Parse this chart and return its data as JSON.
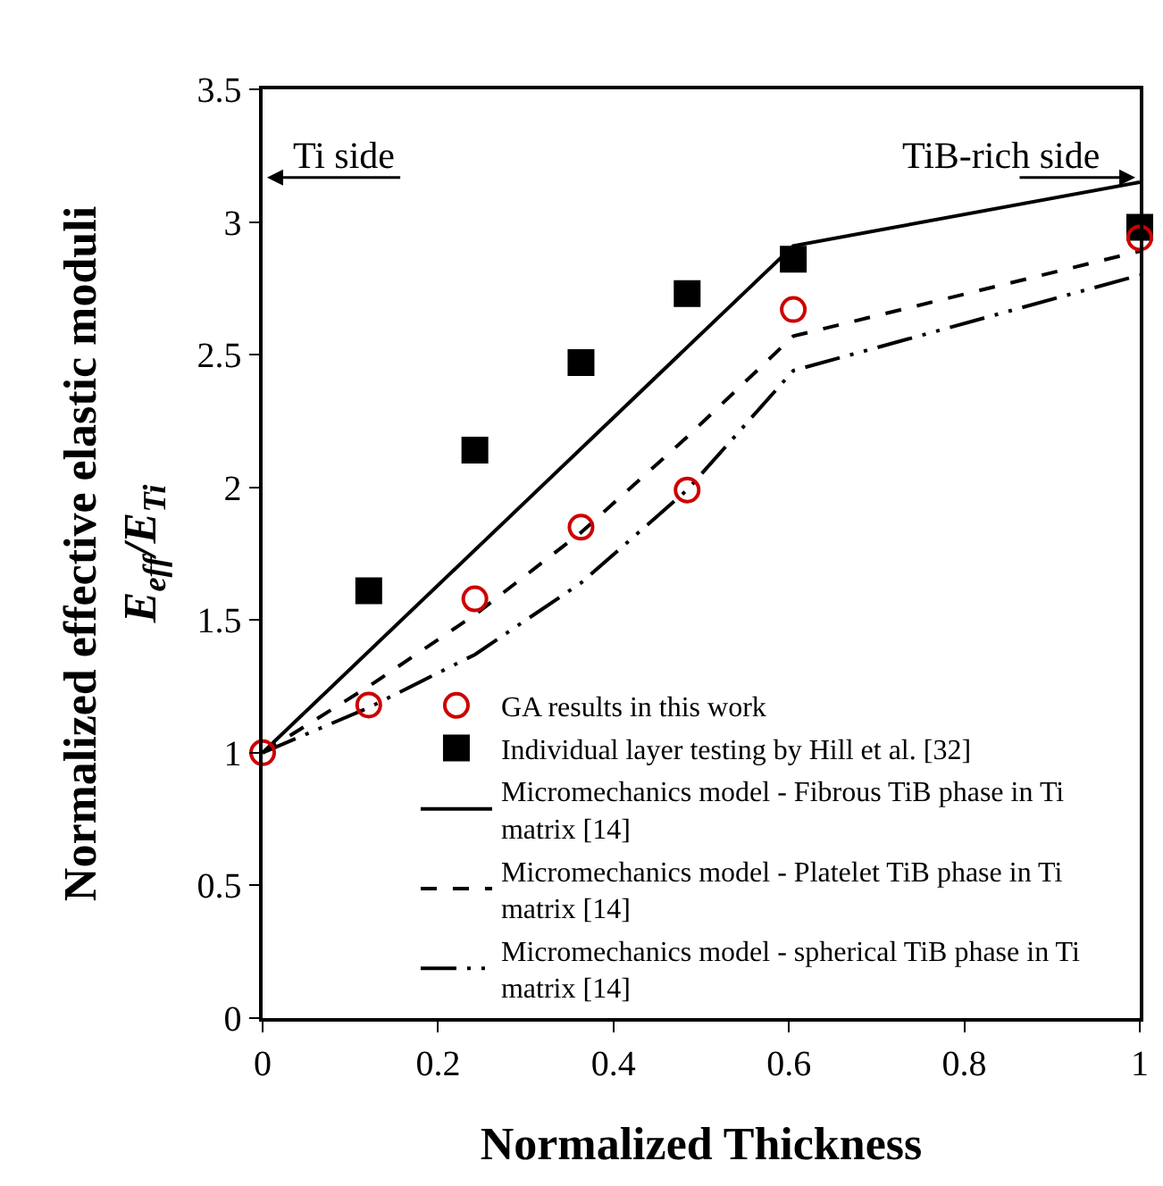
{
  "chart_data": {
    "type": "scatter",
    "xlabel": "Normalized Thickness",
    "ylabel": "Normalized effective elastic moduli\nE$_{eff}$/E$_{Ti}$",
    "xlim": [
      0,
      1
    ],
    "xticks": [
      0,
      0.2,
      0.4,
      0.6,
      0.8,
      1
    ],
    "ylim": [
      0,
      3.5
    ],
    "yticks": [
      0,
      0.5,
      1,
      1.5,
      2,
      2.5,
      3,
      3.5
    ],
    "legend": "bottom right",
    "annotations": [
      "Ti side",
      "TiB-rich side"
    ],
    "series": [
      {
        "name": "GA results in this work",
        "marker": "circle",
        "color": "#cc0000",
        "x": [
          0,
          0.121,
          0.242,
          0.363,
          0.484,
          0.605,
          1
        ],
        "values": [
          1,
          1.18,
          1.58,
          1.85,
          1.99,
          2.67,
          2.94
        ]
      },
      {
        "name": "Individual layer testing by Hill et al. [32]",
        "marker": "square",
        "color": "#000000",
        "x": [
          0.121,
          0.242,
          0.363,
          0.484,
          0.605,
          1
        ],
        "values": [
          1.61,
          2.14,
          2.47,
          2.73,
          2.86,
          2.98
        ]
      },
      {
        "name": "Micromechanics model - Fibrous TiB phase in Ti matrix [14]",
        "type": "line",
        "line_style": "solid",
        "color": "#000000",
        "x": [
          0,
          0.605,
          1
        ],
        "values": [
          1,
          2.91,
          3.15
        ]
      },
      {
        "name": "Micromechanics model - Platelet TiB phase in Ti matrix [14]",
        "type": "line",
        "line_style": "dashed",
        "color": "#000000",
        "x": [
          0,
          0.121,
          0.242,
          0.363,
          0.484,
          0.605,
          1
        ],
        "values": [
          1,
          1.25,
          1.52,
          1.83,
          2.19,
          2.57,
          2.89
        ]
      },
      {
        "name": "Micromechanics model - spherical TiB phase in Ti matrix [14]",
        "type": "line",
        "line_style": "dashdotdot",
        "color": "#000000",
        "x": [
          0,
          0.121,
          0.242,
          0.363,
          0.484,
          0.605,
          1
        ],
        "values": [
          1,
          1.17,
          1.37,
          1.64,
          1.99,
          2.44,
          2.8
        ]
      }
    ]
  }
}
